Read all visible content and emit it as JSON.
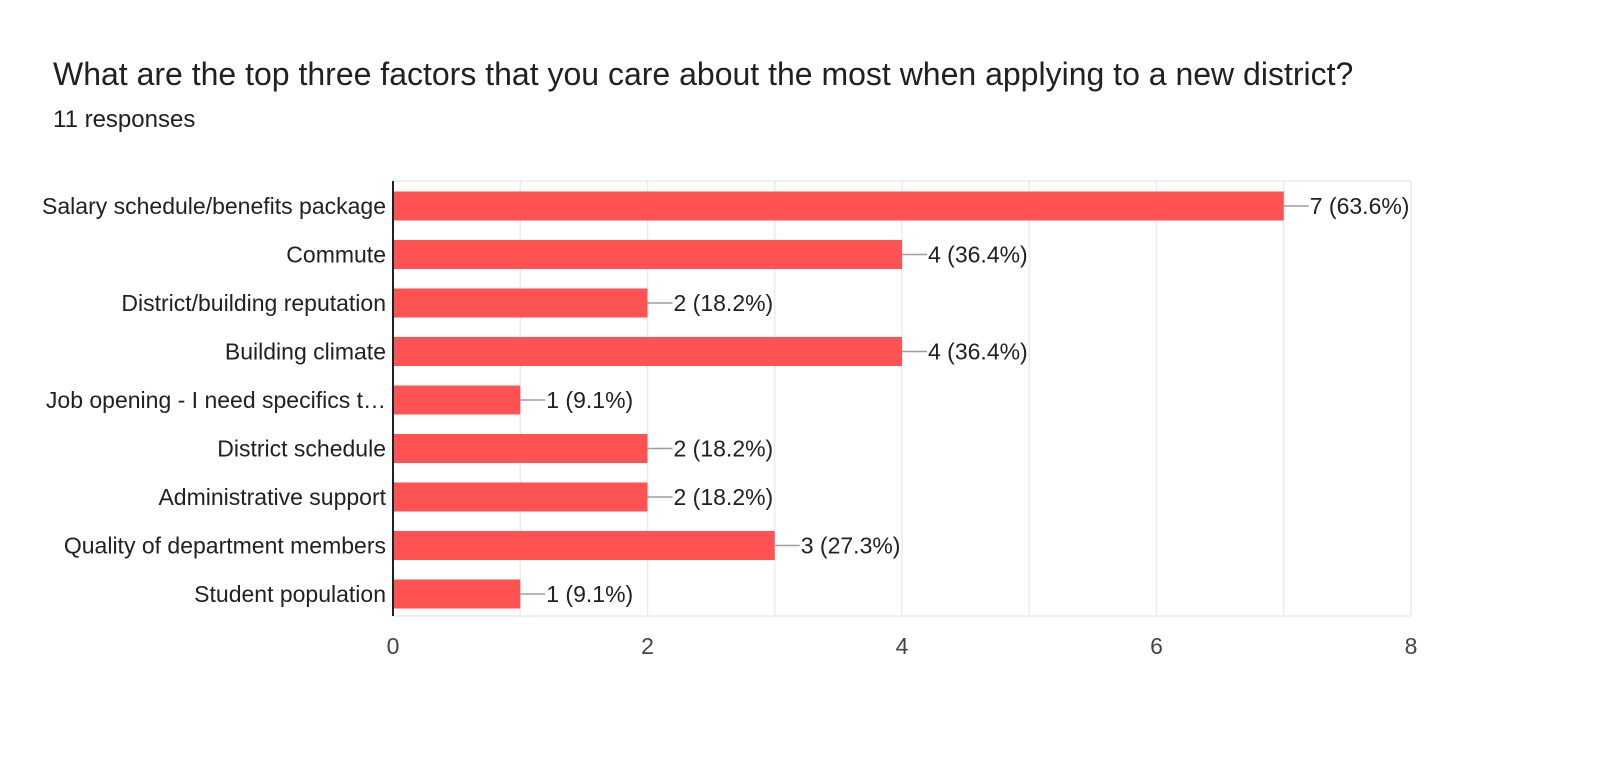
{
  "header": {
    "title": "What are the top three factors that you care about the most when applying to a new district?",
    "responses": "11 responses"
  },
  "chart_data": {
    "type": "bar",
    "orientation": "horizontal",
    "categories": [
      "Salary schedule/benefits package",
      "Commute",
      "District/building reputation",
      "Building climate",
      "Job opening - I need specifics t…",
      "District schedule",
      "Administrative support",
      "Quality of department members",
      "Student population"
    ],
    "values": [
      7,
      4,
      2,
      4,
      1,
      2,
      2,
      3,
      1
    ],
    "data_labels": [
      "7 (63.6%)",
      "4 (36.4%)",
      "2 (18.2%)",
      "4 (36.4%)",
      "1 (9.1%)",
      "2 (18.2%)",
      "2 (18.2%)",
      "3 (27.3%)",
      "1 (9.1%)"
    ],
    "xlim": [
      0,
      8
    ],
    "xticks": [
      0,
      2,
      4,
      6,
      8
    ],
    "grid": true,
    "bar_color": "#ff5252",
    "grid_color": "#ebebeb",
    "axis_color": "#202124",
    "leader_color": "#9e9e9e"
  }
}
